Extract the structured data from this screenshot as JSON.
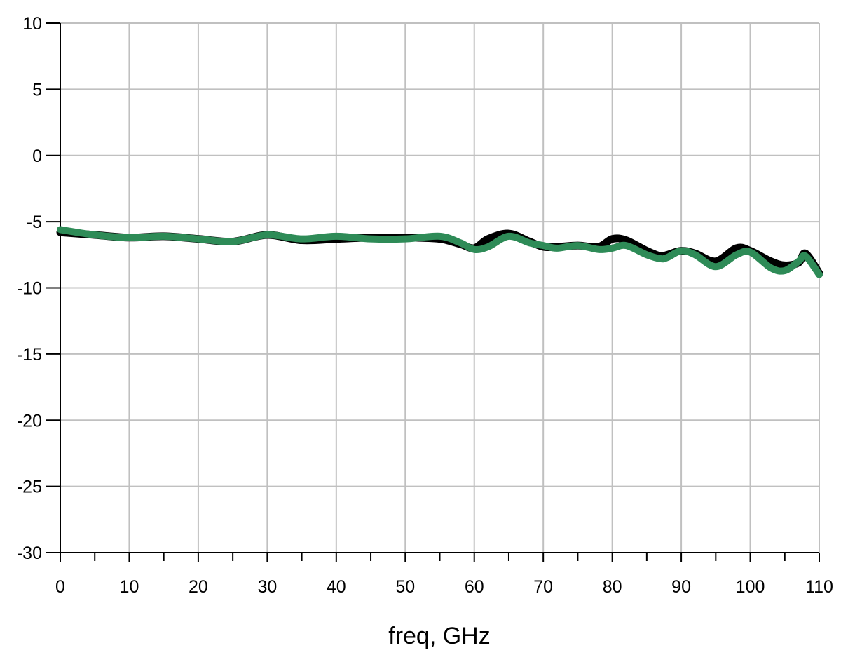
{
  "chart_data": {
    "type": "line",
    "title": "",
    "xlabel": "freq, GHz",
    "ylabel": "",
    "xlim": [
      0,
      110
    ],
    "ylim": [
      -30,
      10
    ],
    "grid": true,
    "xticks": [
      "0",
      "10",
      "20",
      "30",
      "40",
      "50",
      "60",
      "70",
      "80",
      "90",
      "100",
      "110"
    ],
    "yticks": [
      "10",
      "5",
      "0",
      "-5",
      "-10",
      "-15",
      "-20",
      "-25",
      "-30"
    ],
    "series": [
      {
        "color": "#000000",
        "x": [
          0,
          5,
          10,
          15,
          20,
          25,
          30,
          35,
          40,
          45,
          50,
          55,
          58,
          60,
          62,
          65,
          68,
          70,
          72,
          75,
          78,
          80,
          82,
          85,
          87,
          88,
          90,
          92,
          95,
          98,
          100,
          103,
          105,
          107,
          108,
          110
        ],
        "y": [
          -5.8,
          -6.0,
          -6.2,
          -6.1,
          -6.3,
          -6.5,
          -6.0,
          -6.4,
          -6.3,
          -6.2,
          -6.2,
          -6.3,
          -6.7,
          -7.0,
          -6.3,
          -5.9,
          -6.5,
          -6.9,
          -6.9,
          -6.8,
          -6.9,
          -6.3,
          -6.4,
          -7.2,
          -7.6,
          -7.5,
          -7.2,
          -7.4,
          -8.0,
          -7.0,
          -7.2,
          -8.0,
          -8.3,
          -8.1,
          -7.4,
          -8.9
        ]
      },
      {
        "color": "#2e8b57",
        "x": [
          0,
          5,
          10,
          15,
          20,
          25,
          30,
          35,
          40,
          45,
          50,
          55,
          58,
          60,
          62,
          65,
          68,
          70,
          72,
          75,
          78,
          80,
          82,
          85,
          87,
          88,
          90,
          92,
          95,
          98,
          100,
          103,
          105,
          107,
          108,
          110
        ],
        "y": [
          -5.6,
          -6.0,
          -6.2,
          -6.1,
          -6.3,
          -6.5,
          -6.0,
          -6.3,
          -6.1,
          -6.3,
          -6.3,
          -6.1,
          -6.6,
          -7.1,
          -6.9,
          -6.1,
          -6.6,
          -6.8,
          -7.0,
          -6.8,
          -7.1,
          -7.0,
          -6.8,
          -7.5,
          -7.8,
          -7.7,
          -7.2,
          -7.5,
          -8.4,
          -7.5,
          -7.3,
          -8.5,
          -8.7,
          -8.0,
          -7.6,
          -9.0
        ]
      }
    ]
  }
}
